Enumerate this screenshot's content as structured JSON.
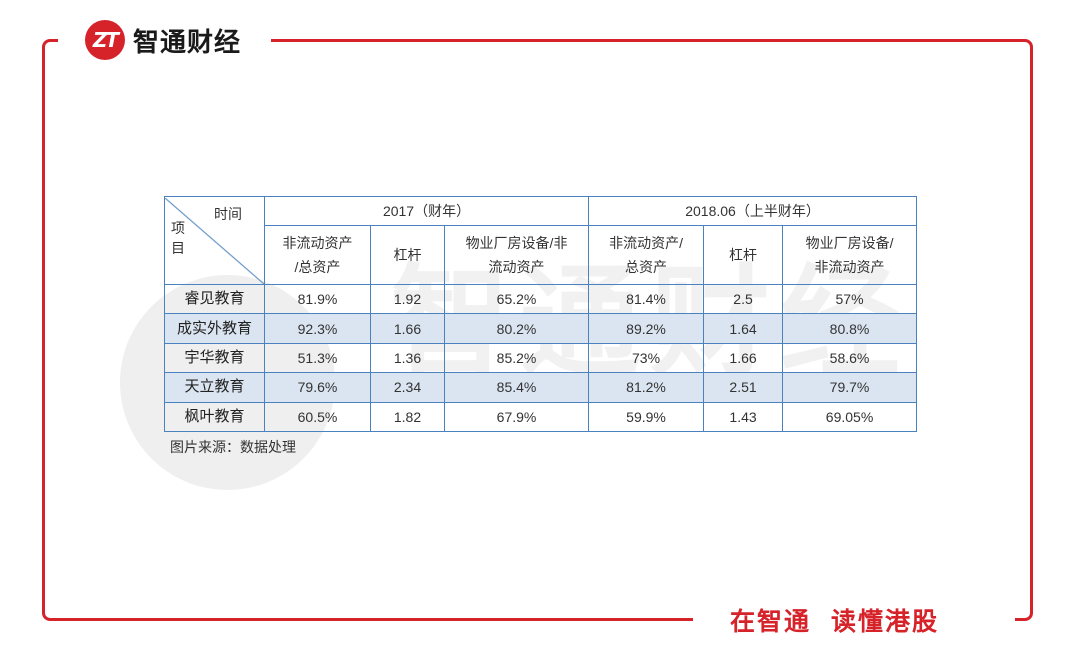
{
  "brand": {
    "logo_text": "ZT",
    "name": "智通财经"
  },
  "slogan": {
    "part1": "在智通",
    "part2": "读懂港股"
  },
  "watermark": {
    "text": "智通财经"
  },
  "table": {
    "corner_top": "时间",
    "corner_bottom": "项目",
    "periods": [
      "2017（财年）",
      "2018.06（上半财年）"
    ],
    "metrics": [
      [
        "非流动资产",
        "/总资产"
      ],
      [
        "杠杆"
      ],
      [
        "物业厂房设备/非",
        "流动资产"
      ],
      [
        "非流动资产/",
        "总资产"
      ],
      [
        "杠杆"
      ],
      [
        "物业厂房设备/",
        "非流动资产"
      ]
    ],
    "rows": [
      {
        "name": "睿见教育",
        "values": [
          "81.9%",
          "1.92",
          "65.2%",
          "81.4%",
          "2.5",
          "57%"
        ]
      },
      {
        "name": "成实外教育",
        "values": [
          "92.3%",
          "1.66",
          "80.2%",
          "89.2%",
          "1.64",
          "80.8%"
        ]
      },
      {
        "name": "宇华教育",
        "values": [
          "51.3%",
          "1.36",
          "85.2%",
          "73%",
          "1.66",
          "58.6%"
        ]
      },
      {
        "name": "天立教育",
        "values": [
          "79.6%",
          "2.34",
          "85.4%",
          "81.2%",
          "2.51",
          "79.7%"
        ]
      },
      {
        "name": "枫叶教育",
        "values": [
          "60.5%",
          "1.82",
          "67.9%",
          "59.9%",
          "1.43",
          "69.05%"
        ]
      }
    ]
  },
  "caption": "图片来源：数据处理"
}
